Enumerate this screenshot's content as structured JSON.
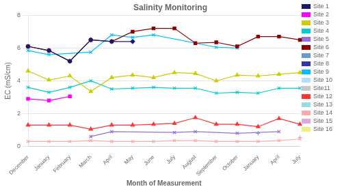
{
  "chart_data": {
    "type": "line",
    "title": "Salinity Monitoring",
    "x_label": "Month of Measurement",
    "y_label": "EC (mS/cm)",
    "categories": [
      "December",
      "January",
      "February",
      "March",
      "April",
      "May",
      "June",
      "July",
      "August",
      "September",
      "October",
      "January",
      "April",
      "July"
    ],
    "ylim": [
      0,
      8
    ],
    "yticks": [
      0,
      2,
      4,
      6,
      8
    ],
    "grid": "y",
    "legend": "right",
    "series": [
      {
        "name": "Site 1",
        "color": "#191970",
        "marker": "diamond",
        "values": [
          6.1,
          5.85,
          5.2,
          6.5,
          6.4,
          6.4,
          null,
          null,
          null,
          null,
          null,
          null,
          null,
          null
        ]
      },
      {
        "name": "Site 2",
        "color": "#FF00FF",
        "marker": "square",
        "values": [
          2.9,
          2.8,
          3.05,
          null,
          null,
          null,
          null,
          null,
          null,
          null,
          null,
          null,
          null,
          null
        ]
      },
      {
        "name": "Site 3",
        "color": "#CCCC00",
        "marker": "triangle",
        "values": [
          4.6,
          4.05,
          4.3,
          3.35,
          4.2,
          4.35,
          4.2,
          4.5,
          4.45,
          4.0,
          4.35,
          4.3,
          4.4,
          4.5
        ]
      },
      {
        "name": "Site 4",
        "color": "#00CCCC",
        "marker": "x",
        "values": [
          3.6,
          3.3,
          3.6,
          4.0,
          3.5,
          3.55,
          3.6,
          3.55,
          3.55,
          3.25,
          3.3,
          3.25,
          3.55,
          3.55
        ]
      },
      {
        "name": "Site 5",
        "color": "#9370DB",
        "marker": "x",
        "values": [
          null,
          null,
          null,
          0.6,
          0.9,
          null,
          null,
          0.85,
          0.9,
          null,
          0.8,
          null,
          0.9,
          null
        ]
      },
      {
        "name": "Site 6",
        "color": "#8B0000",
        "marker": "square",
        "values": [
          6.1,
          5.85,
          5.2,
          6.5,
          6.4,
          7.0,
          7.2,
          7.2,
          6.3,
          6.35,
          6.1,
          6.7,
          6.7,
          6.5
        ]
      },
      {
        "name": "Site 7",
        "color": "#6699CC",
        "marker": "plus",
        "values": [
          null,
          null,
          null,
          null,
          null,
          null,
          null,
          null,
          null,
          null,
          null,
          0.8,
          null,
          null
        ]
      },
      {
        "name": "Site 8",
        "color": "#3333AA",
        "marker": "none",
        "values": [
          null,
          null,
          null,
          null,
          null,
          null,
          null,
          null,
          null,
          null,
          null,
          null,
          null,
          null
        ]
      },
      {
        "name": "Site 9",
        "color": "#00BFFF",
        "marker": "x",
        "values": [
          5.85,
          5.6,
          null,
          5.75,
          6.8,
          6.65,
          6.8,
          null,
          null,
          6.05,
          6.0,
          null,
          null,
          null
        ]
      },
      {
        "name": "Site 10",
        "color": "#B0E0FF",
        "marker": "none",
        "values": [
          null,
          null,
          null,
          null,
          null,
          null,
          null,
          null,
          null,
          null,
          null,
          null,
          null,
          null
        ]
      },
      {
        "name": "Site11",
        "color": "#C8C8C8",
        "marker": "none",
        "values": [
          null,
          null,
          null,
          null,
          null,
          null,
          null,
          null,
          null,
          null,
          null,
          null,
          null,
          null
        ]
      },
      {
        "name": "Site 12",
        "color": "#FF3333",
        "marker": "triangle",
        "values": [
          1.3,
          1.3,
          1.3,
          1.05,
          1.3,
          1.3,
          1.35,
          1.4,
          1.75,
          1.35,
          1.35,
          1.2,
          1.7,
          1.35
        ]
      },
      {
        "name": "Site 13",
        "color": "#99DDDD",
        "marker": "x",
        "values": [
          null,
          null,
          null,
          null,
          null,
          null,
          null,
          null,
          null,
          null,
          null,
          null,
          null,
          null
        ]
      },
      {
        "name": "Site 14",
        "color": "#FFAAAA",
        "marker": "x",
        "values": [
          0.3,
          0.3,
          0.3,
          0.35,
          0.3,
          0.3,
          0.3,
          0.35,
          0.35,
          0.3,
          0.3,
          0.3,
          0.35,
          0.45
        ]
      },
      {
        "name": "Site 15",
        "color": "#DDAADD",
        "marker": "plus",
        "values": [
          null,
          null,
          null,
          null,
          null,
          null,
          null,
          null,
          null,
          null,
          null,
          null,
          null,
          0.55
        ]
      },
      {
        "name": "Site 16",
        "color": "#EEEE88",
        "marker": "diamond",
        "values": [
          null,
          null,
          null,
          null,
          null,
          null,
          null,
          null,
          null,
          null,
          null,
          null,
          null,
          null
        ]
      }
    ]
  }
}
